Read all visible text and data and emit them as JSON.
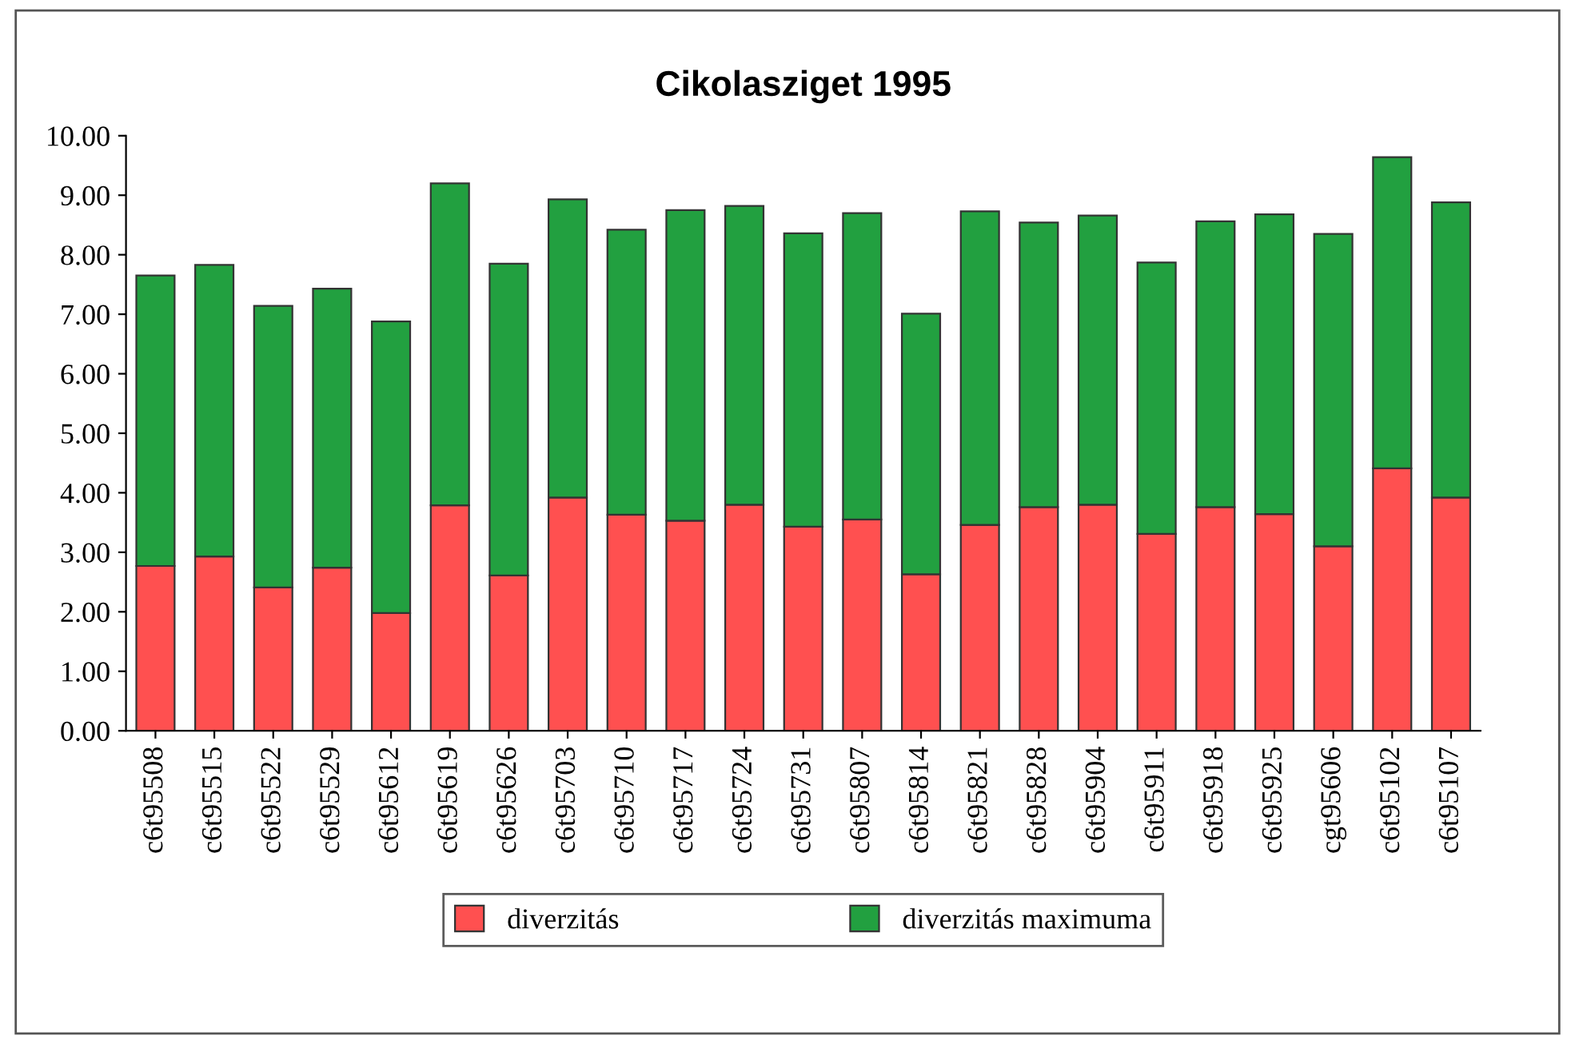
{
  "chart_data": {
    "type": "bar",
    "title": "Cikolasziget 1995",
    "stacked": true,
    "categories": [
      "c6t95508",
      "c6t95515",
      "c6t95522",
      "c6t95529",
      "c6t95612",
      "c6t95619",
      "c6t95626",
      "c6t95703",
      "c6t95710",
      "c6t95717",
      "c6t95724",
      "c6t95731",
      "c6t95807",
      "c6t95814",
      "c6t95821",
      "c6t95828",
      "c6t95904",
      "c6t95911",
      "c6t95918",
      "c6t95925",
      "cgt95606",
      "c6t95102",
      "c6t95107"
    ],
    "series": [
      {
        "name": "diverzitás",
        "color": "#ff5050",
        "values": [
          2.77,
          2.93,
          2.41,
          2.74,
          1.98,
          3.79,
          2.61,
          3.92,
          3.63,
          3.53,
          3.8,
          3.43,
          3.55,
          2.63,
          3.46,
          3.76,
          3.8,
          3.31,
          3.76,
          3.64,
          3.1,
          4.41,
          3.92
        ]
      },
      {
        "name": "diverzitás maximuma",
        "color": "#22a040",
        "values": [
          4.88,
          4.9,
          4.73,
          4.69,
          4.9,
          5.41,
          5.24,
          5.01,
          4.79,
          5.22,
          5.02,
          4.93,
          5.15,
          4.38,
          5.27,
          4.78,
          4.86,
          4.56,
          4.8,
          5.04,
          5.25,
          5.23,
          4.96
        ]
      }
    ],
    "ylim": [
      0,
      10
    ],
    "yticks": [
      {
        "value": 0,
        "label": "0.00"
      },
      {
        "value": 1,
        "label": "1.00"
      },
      {
        "value": 2,
        "label": "2.00"
      },
      {
        "value": 3,
        "label": "3.00"
      },
      {
        "value": 4,
        "label": "4.00"
      },
      {
        "value": 5,
        "label": "5.00"
      },
      {
        "value": 6,
        "label": "6.00"
      },
      {
        "value": 7,
        "label": "7.00"
      },
      {
        "value": 8,
        "label": "8.00"
      },
      {
        "value": 9,
        "label": "9.00"
      },
      {
        "value": 10,
        "label": "10.00"
      }
    ],
    "grid": false,
    "legend": "bottom"
  }
}
